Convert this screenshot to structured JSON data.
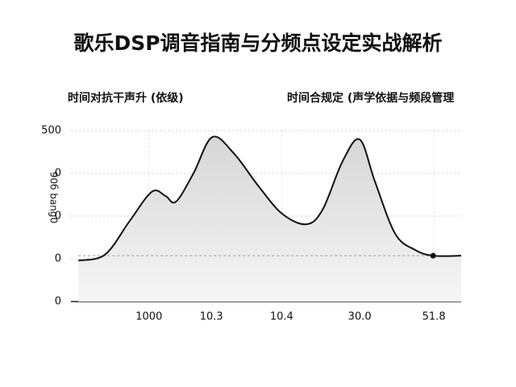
{
  "chart_data": {
    "type": "area",
    "title": "歌乐DSP调音指南与分频点设定实战解析",
    "subtitle_left": "时间对抗干声升 (依级)",
    "subtitle_right": "时间合规定 (声学依据与频段管理",
    "y_label": "90б bang0",
    "x": [
      1.9,
      8.7,
      14.9,
      20.7,
      24.2,
      26.9,
      31.4,
      36.2,
      41.7,
      47.9,
      54.1,
      60.3,
      64.5,
      69.6,
      74.0,
      77.9,
      83.1,
      88.2,
      92.8,
      100
    ],
    "values": [
      120,
      137,
      233,
      321,
      309,
      292,
      375,
      481,
      434,
      340,
      257,
      226,
      269,
      410,
      474,
      351,
      198,
      151,
      134,
      134
    ],
    "color": "#111111",
    "fill": "#e4e4e4",
    "xlim": [
      0,
      100
    ],
    "ylim": [
      0,
      500
    ],
    "xticks": [
      {
        "value": 20,
        "label": "1000"
      },
      {
        "value": 36,
        "label": "10.3"
      },
      {
        "value": 54,
        "label": "10.4"
      },
      {
        "value": 74,
        "label": "30.0"
      },
      {
        "value": 93,
        "label": "51.8"
      }
    ],
    "yticks": [
      0,
      {
        "value": 125,
        "label": "0"
      },
      {
        "value": 250,
        "label": "0"
      },
      {
        "value": 375,
        "label": "0"
      },
      500
    ],
    "grid": true
  }
}
